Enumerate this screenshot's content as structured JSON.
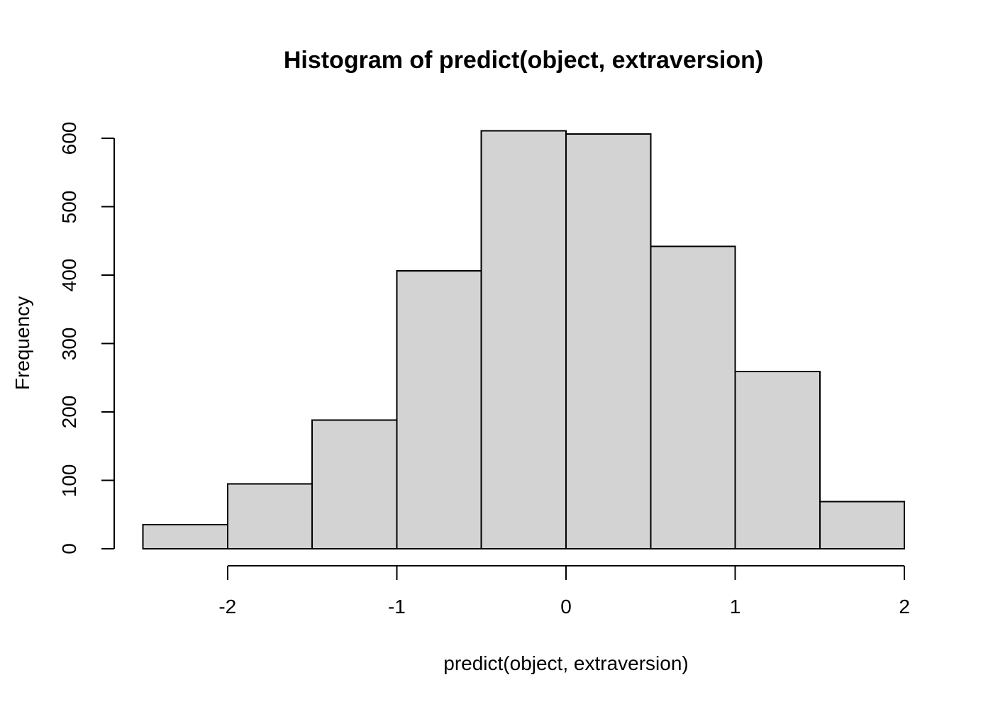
{
  "chart_data": {
    "type": "bar",
    "subtype": "histogram",
    "title": "Histogram of predict(object, extraversion)",
    "xlabel": "predict(object, extraversion)",
    "ylabel": "Frequency",
    "breaks": [
      -2.5,
      -2.0,
      -1.5,
      -1.0,
      -0.5,
      0.0,
      0.5,
      1.0,
      1.5,
      2.0
    ],
    "counts": [
      35,
      95,
      188,
      406,
      611,
      606,
      442,
      259,
      69
    ],
    "x_tick_values": [
      -2,
      -1,
      0,
      1,
      2
    ],
    "x_tick_labels": [
      "-2",
      "-1",
      "0",
      "1",
      "2"
    ],
    "y_tick_values": [
      0,
      100,
      200,
      300,
      400,
      500,
      600
    ],
    "y_tick_labels": [
      "0",
      "100",
      "200",
      "300",
      "400",
      "500",
      "600"
    ],
    "xlim": [
      -2.5,
      2.0
    ],
    "ylim": [
      0,
      600
    ],
    "grid": "off",
    "legend": "none",
    "bar_fill": "#d3d3d3",
    "bar_stroke": "#000000",
    "axis_color": "#000000",
    "background": "#ffffff"
  }
}
